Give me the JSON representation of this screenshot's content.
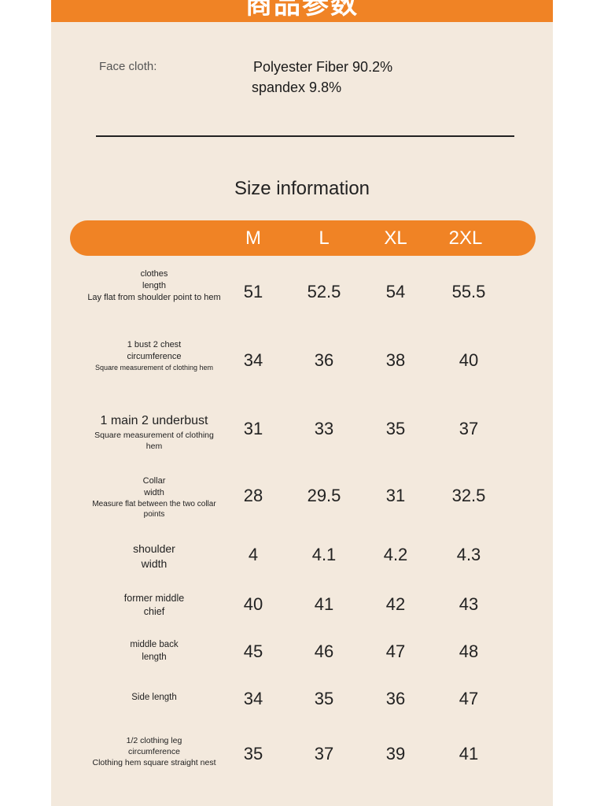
{
  "banner": {
    "title": "商品参数"
  },
  "fabric": {
    "label": "Face cloth:",
    "line1": "Polyester Fiber 90.2%",
    "line2": "spandex 9.8%"
  },
  "size_section": {
    "title": "Size information",
    "headers": [
      "M",
      "L",
      "XL",
      "2XL"
    ]
  },
  "rows": [
    {
      "label_lines": [
        "clothes",
        "length",
        "Lay flat from shoulder point to hem"
      ],
      "values": [
        "51",
        "52.5",
        "54",
        "55.5"
      ]
    },
    {
      "label_lines": [
        "1 bust 2 chest",
        "circumference",
        "Square measurement of clothing hem"
      ],
      "values": [
        "34",
        "36",
        "38",
        "40"
      ]
    },
    {
      "label_lines": [
        "1 main 2 underbust",
        "Square measurement of clothing",
        "hem"
      ],
      "values": [
        "31",
        "33",
        "35",
        "37"
      ]
    },
    {
      "label_lines": [
        "Collar",
        "width",
        "Measure flat between the two collar",
        "points"
      ],
      "values": [
        "28",
        "29.5",
        "31",
        "32.5"
      ]
    },
    {
      "label_lines": [
        "shoulder",
        "width"
      ],
      "values": [
        "4",
        "4.1",
        "4.2",
        "4.3"
      ]
    },
    {
      "label_lines": [
        "former middle",
        "chief"
      ],
      "values": [
        "40",
        "41",
        "42",
        "43"
      ]
    },
    {
      "label_lines": [
        "middle back",
        "length"
      ],
      "values": [
        "45",
        "46",
        "47",
        "48"
      ]
    },
    {
      "label_lines": [
        "Side length"
      ],
      "values": [
        "34",
        "35",
        "36",
        "47"
      ]
    },
    {
      "label_lines": [
        "1/2 clothing leg",
        "circumference",
        "Clothing hem square straight nest"
      ],
      "values": [
        "35",
        "37",
        "39",
        "41"
      ]
    }
  ]
}
